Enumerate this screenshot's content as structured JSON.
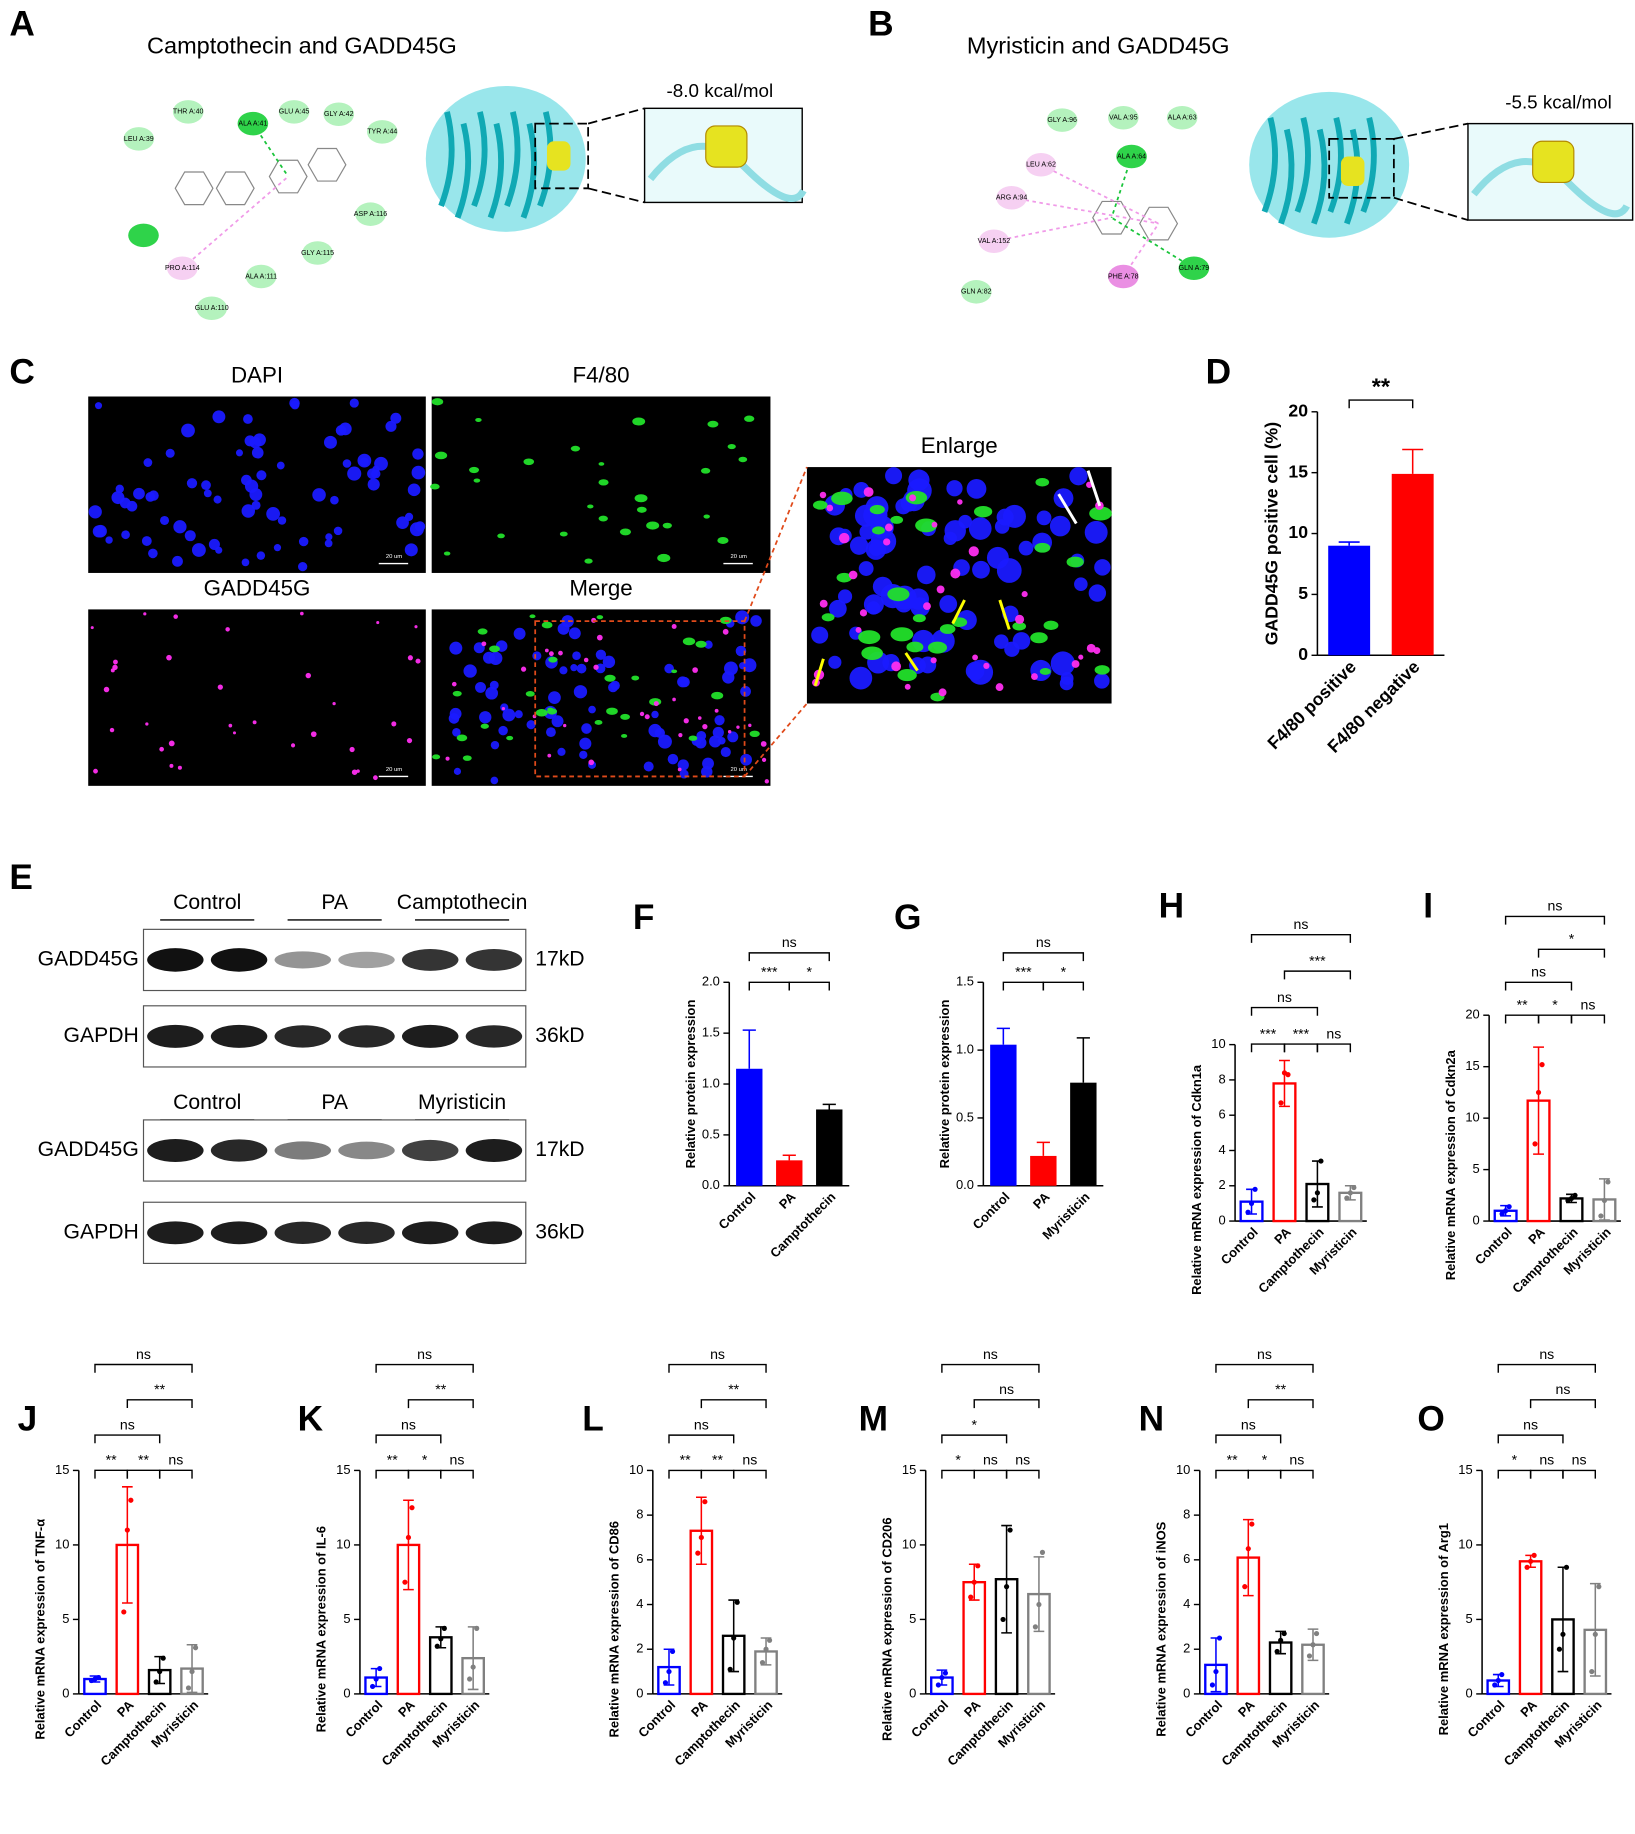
{
  "panel_labels": [
    "A",
    "B",
    "C",
    "D",
    "E",
    "F",
    "G",
    "H",
    "I",
    "J",
    "K",
    "L",
    "M",
    "N",
    "O"
  ],
  "docking": [
    {
      "title": "Camptothecin and GADD45G",
      "energy": "-8.0 kcal/mol",
      "residues": [
        "THR A:40",
        "LEU A:39",
        "ALA A:41",
        "GLU A:45",
        "GLY A:42",
        "TYR A:44",
        "ASP A:116",
        "GLY A:115",
        "ALA A:111",
        "GLU A:110",
        "PRO A:114"
      ]
    },
    {
      "title": "Myristicin and GADD45G",
      "energy": "-5.5 kcal/mol",
      "residues": [
        "GLY A:96",
        "VAL A:95",
        "ALA A:63",
        "LEU A:62",
        "ALA A:64",
        "ARG A:94",
        "VAL A:152",
        "PHE A:78",
        "GLN A:79",
        "GLN A:82"
      ]
    }
  ],
  "microscopy": {
    "channels": [
      "DAPI",
      "F4/80",
      "GADD45G",
      "Merge"
    ],
    "enlarge": "Enlarge",
    "scale_bar": "20 um"
  },
  "blots": [
    {
      "groups": [
        "Control",
        "PA",
        "Camptothecin"
      ],
      "bands": [
        {
          "name": "GADD45G",
          "size": "17kD"
        },
        {
          "name": "GAPDH",
          "size": "36kD"
        }
      ]
    },
    {
      "groups": [
        "Control",
        "PA",
        "Myristicin"
      ],
      "bands": [
        {
          "name": "GADD45G",
          "size": "17kD"
        },
        {
          "name": "GAPDH",
          "size": "36kD"
        }
      ]
    }
  ],
  "chart_data": [
    {
      "type": "bar",
      "y_label": "GADD45G positive cell (%)",
      "fill": true,
      "categories": [
        "F4/80 positive",
        "F4/80 negative"
      ],
      "values": [
        9.0,
        14.9
      ],
      "errors": [
        0.3,
        2.0
      ],
      "colors": [
        "#0000ff",
        "#ff0000"
      ],
      "ylim": [
        0,
        20
      ],
      "yticks": [
        0,
        5,
        10,
        15,
        20
      ],
      "comparisons": [
        {
          "pair": [
            0,
            1
          ],
          "label": "**"
        }
      ]
    },
    {
      "type": "bar",
      "y_label": "Relative protein expression",
      "fill": true,
      "categories": [
        "Control",
        "PA",
        "Camptothecin"
      ],
      "values": [
        1.15,
        0.25,
        0.75
      ],
      "errors": [
        0.38,
        0.05,
        0.05
      ],
      "colors": [
        "#0000ff",
        "#ff0000",
        "#000000"
      ],
      "ylim": [
        0,
        2.0
      ],
      "yticks": [
        {
          "value": 0,
          "label": "0.0"
        },
        0.5,
        {
          "value": 1,
          "label": "1.0"
        },
        1.5,
        {
          "value": 2,
          "label": "2.0"
        }
      ],
      "comparisons": [
        {
          "pair": [
            0,
            1
          ],
          "label": "***"
        },
        {
          "pair": [
            1,
            2
          ],
          "label": "*"
        },
        {
          "pair": [
            0,
            2
          ],
          "label": "ns"
        }
      ]
    },
    {
      "type": "bar",
      "y_label": "Relative protein expression",
      "fill": true,
      "categories": [
        "Control",
        "PA",
        "Myristicin"
      ],
      "values": [
        1.04,
        0.22,
        0.76
      ],
      "errors": [
        0.12,
        0.1,
        0.33
      ],
      "colors": [
        "#0000ff",
        "#ff0000",
        "#000000"
      ],
      "ylim": [
        0,
        1.5
      ],
      "yticks": [
        {
          "value": 0,
          "label": "0.0"
        },
        0.5,
        {
          "value": 1,
          "label": "1.0"
        },
        1.5
      ],
      "comparisons": [
        {
          "pair": [
            0,
            1
          ],
          "label": "***"
        },
        {
          "pair": [
            1,
            2
          ],
          "label": "*"
        },
        {
          "pair": [
            0,
            2
          ],
          "label": "ns"
        }
      ]
    },
    {
      "type": "bar",
      "y_label": "Relative mRNA expression of Cdkn1a",
      "fill": false,
      "categories": [
        "Control",
        "PA",
        "Camptothecin",
        "Myristicin"
      ],
      "values": [
        1.1,
        7.8,
        2.1,
        1.6
      ],
      "errors": [
        0.7,
        1.3,
        1.3,
        0.4
      ],
      "points": [
        [
          0.5,
          1.0,
          1.8
        ],
        [
          6.7,
          8.4,
          8.3
        ],
        [
          1.2,
          1.6,
          3.4
        ],
        [
          1.3,
          1.6,
          1.9
        ]
      ],
      "colors": [
        "#0000ff",
        "#ff0000",
        "#000000",
        "#808080"
      ],
      "ylim": [
        0,
        10
      ],
      "yticks": [
        0,
        2,
        4,
        6,
        8,
        10
      ],
      "comparisons": [
        {
          "pair": [
            0,
            1
          ],
          "label": "***"
        },
        {
          "pair": [
            1,
            2
          ],
          "label": "***"
        },
        {
          "pair": [
            2,
            3
          ],
          "label": "ns"
        },
        {
          "pair": [
            0,
            2
          ],
          "label": "ns"
        },
        {
          "pair": [
            1,
            3
          ],
          "label": "***"
        },
        {
          "pair": [
            0,
            3
          ],
          "label": "ns"
        }
      ]
    },
    {
      "type": "bar",
      "y_label": "Relative mRNA expression of Cdkn2a",
      "fill": false,
      "categories": [
        "Control",
        "PA",
        "Camptothecin",
        "Myristicin"
      ],
      "values": [
        1.0,
        11.7,
        2.2,
        2.1
      ],
      "errors": [
        0.5,
        5.2,
        0.4,
        2.0
      ],
      "points": [
        [
          0.7,
          1.0,
          1.4
        ],
        [
          7.5,
          12.5,
          15.2
        ],
        [
          2.0,
          2.2,
          2.5
        ],
        [
          0.5,
          2.0,
          3.8
        ]
      ],
      "colors": [
        "#0000ff",
        "#ff0000",
        "#000000",
        "#808080"
      ],
      "ylim": [
        0,
        20
      ],
      "yticks": [
        0,
        5,
        10,
        15,
        20
      ],
      "comparisons": [
        {
          "pair": [
            0,
            1
          ],
          "label": "**"
        },
        {
          "pair": [
            1,
            2
          ],
          "label": "*"
        },
        {
          "pair": [
            2,
            3
          ],
          "label": "ns"
        },
        {
          "pair": [
            0,
            2
          ],
          "label": "ns"
        },
        {
          "pair": [
            1,
            3
          ],
          "label": "*"
        },
        {
          "pair": [
            0,
            3
          ],
          "label": "ns"
        }
      ]
    },
    {
      "type": "bar",
      "y_label": "Relative mRNA expression of TNF-α",
      "fill": false,
      "categories": [
        "Control",
        "PA",
        "Camptothecin",
        "Myristicin"
      ],
      "values": [
        1.0,
        10.0,
        1.6,
        1.7
      ],
      "errors": [
        0.2,
        3.9,
        0.9,
        1.6
      ],
      "points": [
        [
          0.9,
          1.0,
          1.1
        ],
        [
          5.5,
          11.0,
          13.0
        ],
        [
          0.8,
          1.5,
          2.4
        ],
        [
          0.4,
          1.5,
          3.1
        ]
      ],
      "colors": [
        "#0000ff",
        "#ff0000",
        "#000000",
        "#808080"
      ],
      "ylim": [
        0,
        15
      ],
      "yticks": [
        0,
        5,
        10,
        15
      ],
      "comparisons": [
        {
          "pair": [
            0,
            1
          ],
          "label": "**"
        },
        {
          "pair": [
            1,
            2
          ],
          "label": "**"
        },
        {
          "pair": [
            2,
            3
          ],
          "label": "ns"
        },
        {
          "pair": [
            0,
            2
          ],
          "label": "ns"
        },
        {
          "pair": [
            1,
            3
          ],
          "label": "**"
        },
        {
          "pair": [
            0,
            3
          ],
          "label": "ns"
        }
      ]
    },
    {
      "type": "bar",
      "y_label": "Relative mRNA expression of IL-6",
      "fill": false,
      "categories": [
        "Control",
        "PA",
        "Camptothecin",
        "Myristicin"
      ],
      "values": [
        1.1,
        10.0,
        3.8,
        2.4
      ],
      "errors": [
        0.6,
        3.0,
        0.7,
        2.1
      ],
      "points": [
        [
          0.5,
          1.0,
          1.7
        ],
        [
          7.5,
          10.5,
          12.5
        ],
        [
          3.2,
          3.7,
          4.4
        ],
        [
          1.0,
          1.8,
          4.4
        ]
      ],
      "colors": [
        "#0000ff",
        "#ff0000",
        "#000000",
        "#808080"
      ],
      "ylim": [
        0,
        15
      ],
      "yticks": [
        0,
        5,
        10,
        15
      ],
      "comparisons": [
        {
          "pair": [
            0,
            1
          ],
          "label": "**"
        },
        {
          "pair": [
            1,
            2
          ],
          "label": "*"
        },
        {
          "pair": [
            2,
            3
          ],
          "label": "ns"
        },
        {
          "pair": [
            0,
            2
          ],
          "label": "ns"
        },
        {
          "pair": [
            1,
            3
          ],
          "label": "**"
        },
        {
          "pair": [
            0,
            3
          ],
          "label": "ns"
        }
      ]
    },
    {
      "type": "bar",
      "y_label": "Relative mRNA expression of CD86",
      "fill": false,
      "categories": [
        "Control",
        "PA",
        "Camptothecin",
        "Myristicin"
      ],
      "values": [
        1.2,
        7.3,
        2.6,
        1.9
      ],
      "errors": [
        0.8,
        1.5,
        1.6,
        0.6
      ],
      "points": [
        [
          0.5,
          1.0,
          1.9
        ],
        [
          6.3,
          7.0,
          8.6
        ],
        [
          1.1,
          2.5,
          4.1
        ],
        [
          1.4,
          2.0,
          2.4
        ]
      ],
      "colors": [
        "#0000ff",
        "#ff0000",
        "#000000",
        "#808080"
      ],
      "ylim": [
        0,
        10
      ],
      "yticks": [
        0,
        2,
        4,
        6,
        8,
        10
      ],
      "comparisons": [
        {
          "pair": [
            0,
            1
          ],
          "label": "**"
        },
        {
          "pair": [
            1,
            2
          ],
          "label": "**"
        },
        {
          "pair": [
            2,
            3
          ],
          "label": "ns"
        },
        {
          "pair": [
            0,
            2
          ],
          "label": "ns"
        },
        {
          "pair": [
            1,
            3
          ],
          "label": "**"
        },
        {
          "pair": [
            0,
            3
          ],
          "label": "ns"
        }
      ]
    },
    {
      "type": "bar",
      "y_label": "Relative mRNA expression of CD206",
      "fill": false,
      "categories": [
        "Control",
        "PA",
        "Camptothecin",
        "Myristicin"
      ],
      "values": [
        1.1,
        7.5,
        7.7,
        6.7
      ],
      "errors": [
        0.5,
        1.2,
        3.6,
        2.5
      ],
      "points": [
        [
          0.6,
          1.1,
          1.4
        ],
        [
          6.5,
          7.5,
          8.6
        ],
        [
          5.0,
          7.2,
          11.0
        ],
        [
          4.5,
          6.0,
          9.5
        ]
      ],
      "colors": [
        "#0000ff",
        "#ff0000",
        "#000000",
        "#808080"
      ],
      "ylim": [
        0,
        15
      ],
      "yticks": [
        0,
        5,
        10,
        15
      ],
      "comparisons": [
        {
          "pair": [
            0,
            1
          ],
          "label": "*"
        },
        {
          "pair": [
            1,
            2
          ],
          "label": "ns"
        },
        {
          "pair": [
            2,
            3
          ],
          "label": "ns"
        },
        {
          "pair": [
            0,
            2
          ],
          "label": "*"
        },
        {
          "pair": [
            1,
            3
          ],
          "label": "ns"
        },
        {
          "pair": [
            0,
            3
          ],
          "label": "ns"
        }
      ]
    },
    {
      "type": "bar",
      "y_label": "Relative mRNA expression of iNOS",
      "fill": false,
      "categories": [
        "Control",
        "PA",
        "Camptothecin",
        "Myristicin"
      ],
      "values": [
        1.3,
        6.1,
        2.3,
        2.2
      ],
      "errors": [
        1.2,
        1.7,
        0.5,
        0.7
      ],
      "points": [
        [
          0.4,
          1.0,
          2.5
        ],
        [
          4.8,
          6.5,
          7.6
        ],
        [
          1.9,
          2.4,
          2.7
        ],
        [
          1.7,
          2.2,
          2.7
        ]
      ],
      "colors": [
        "#0000ff",
        "#ff0000",
        "#000000",
        "#808080"
      ],
      "ylim": [
        0,
        10
      ],
      "yticks": [
        0,
        2,
        4,
        6,
        8,
        10
      ],
      "comparisons": [
        {
          "pair": [
            0,
            1
          ],
          "label": "**"
        },
        {
          "pair": [
            1,
            2
          ],
          "label": "*"
        },
        {
          "pair": [
            2,
            3
          ],
          "label": "ns"
        },
        {
          "pair": [
            0,
            2
          ],
          "label": "ns"
        },
        {
          "pair": [
            1,
            3
          ],
          "label": "**"
        },
        {
          "pair": [
            0,
            3
          ],
          "label": "ns"
        }
      ]
    },
    {
      "type": "bar",
      "y_label": "Relative mRNA expression of Arg1",
      "fill": false,
      "categories": [
        "Control",
        "PA",
        "Camptothecin",
        "Myristicin"
      ],
      "values": [
        0.9,
        8.9,
        5.0,
        4.3
      ],
      "errors": [
        0.4,
        0.4,
        3.5,
        3.1
      ],
      "points": [
        [
          0.6,
          0.9,
          1.3
        ],
        [
          8.5,
          8.9,
          9.3
        ],
        [
          3.0,
          4.0,
          8.5
        ],
        [
          1.5,
          4.0,
          7.2
        ]
      ],
      "colors": [
        "#0000ff",
        "#ff0000",
        "#000000",
        "#808080"
      ],
      "ylim": [
        0,
        15
      ],
      "yticks": [
        0,
        5,
        10,
        15
      ],
      "comparisons": [
        {
          "pair": [
            0,
            1
          ],
          "label": "*"
        },
        {
          "pair": [
            1,
            2
          ],
          "label": "ns"
        },
        {
          "pair": [
            2,
            3
          ],
          "label": "ns"
        },
        {
          "pair": [
            0,
            2
          ],
          "label": "ns"
        },
        {
          "pair": [
            1,
            3
          ],
          "label": "ns"
        },
        {
          "pair": [
            0,
            3
          ],
          "label": "ns"
        }
      ]
    }
  ]
}
